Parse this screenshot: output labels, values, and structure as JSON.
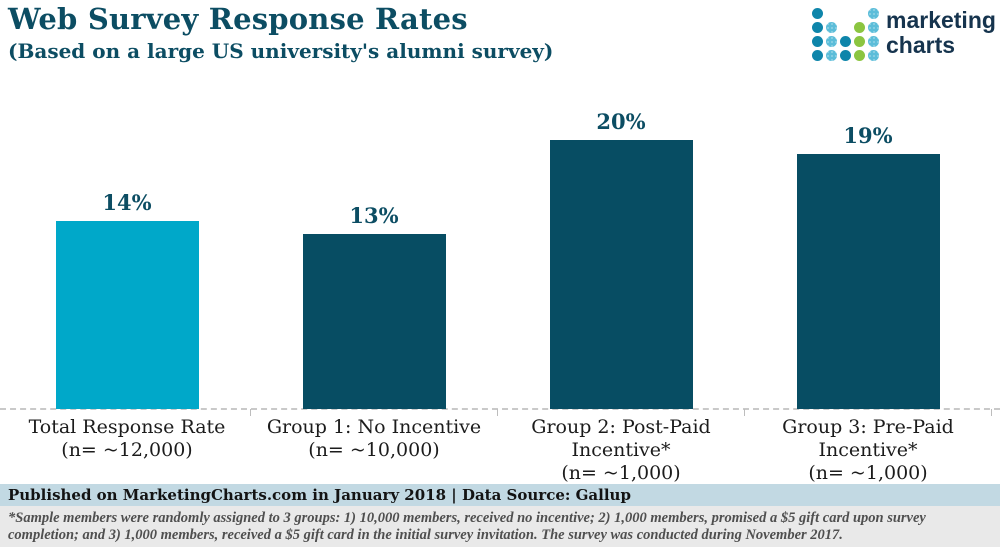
{
  "header": {
    "title": "Web Survey Response Rates",
    "subtitle": "(Based on a large US university's alumni survey)"
  },
  "logo": {
    "name_line1": "marketing",
    "name_line2": "charts",
    "dot_pattern": [
      "t...l",
      "tl.gl",
      "tltgl",
      "tltgl"
    ],
    "dot_colors": {
      "t": "#0e85aa",
      "l": "#5cbdd9",
      "g": "#8bc540"
    },
    "text_color": "#16344e"
  },
  "chart_data": {
    "type": "bar",
    "title": "Web Survey Response Rates",
    "subtitle": "(Based on a large US university's alumni survey)",
    "categories": [
      "Total Response Rate",
      "Group 1: No Incentive",
      "Group 2: Post-Paid Incentive*",
      "Group 3: Pre-Paid Incentive*"
    ],
    "category_sublabels": [
      "(n= ~12,000)",
      "(n= ~10,000)",
      "(n= ~1,000)",
      "(n= ~1,000)"
    ],
    "values": [
      14,
      13,
      20,
      19
    ],
    "value_labels": [
      "14%",
      "13%",
      "20%",
      "19%"
    ],
    "bar_colors": [
      "#00a8c9",
      "#074d63",
      "#074d63",
      "#074d63"
    ],
    "ylim": [
      0,
      22
    ],
    "grid": false,
    "legend": "none",
    "accent_color": "#0c4d63"
  },
  "footer": {
    "published": "Published on MarketingCharts.com in January 2018 | Data Source: Gallup"
  },
  "footnote": {
    "text": "*Sample members were randomly assigned to 3 groups: 1) 10,000 members, received no incentive; 2) 1,000 members, promised a $5 gift card upon survey completion; and 3) 1,000 members, received a $5 gift card in the initial survey invitation. The survey was conducted during November 2017."
  }
}
